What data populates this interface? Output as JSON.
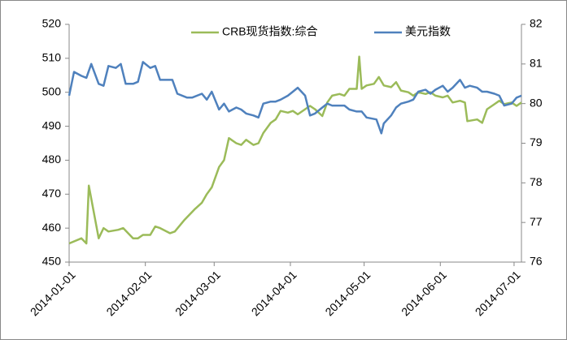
{
  "chart_data": {
    "type": "line",
    "xlim": [
      "2014-01-01",
      "2014-07-04"
    ],
    "xticks": [
      "2014-01-01",
      "2014-02-01",
      "2014-03-01",
      "2014-04-01",
      "2014-05-01",
      "2014-06-01",
      "2014-07-01"
    ],
    "ylim": [
      450,
      520
    ],
    "yticks": [
      450,
      460,
      470,
      480,
      490,
      500,
      510,
      520
    ],
    "y2lim": [
      76,
      82
    ],
    "y2ticks": [
      76,
      77,
      78,
      79,
      80,
      81,
      82
    ],
    "legend": "top",
    "series": [
      {
        "name": "CRB现货指数:综合",
        "color": "#9bbb59",
        "x": [
          "2014-01-01",
          "2014-01-06",
          "2014-01-08",
          "2014-01-09",
          "2014-01-13",
          "2014-01-15",
          "2014-01-17",
          "2014-01-21",
          "2014-01-23",
          "2014-01-27",
          "2014-01-29",
          "2014-01-31",
          "2014-02-03",
          "2014-02-05",
          "2014-02-07",
          "2014-02-11",
          "2014-02-13",
          "2014-02-17",
          "2014-02-21",
          "2014-02-24",
          "2014-02-26",
          "2014-02-28",
          "2014-03-03",
          "2014-03-05",
          "2014-03-07",
          "2014-03-10",
          "2014-03-12",
          "2014-03-14",
          "2014-03-17",
          "2014-03-19",
          "2014-03-21",
          "2014-03-24",
          "2014-03-26",
          "2014-03-28",
          "2014-03-31",
          "2014-04-02",
          "2014-04-04",
          "2014-04-07",
          "2014-04-09",
          "2014-04-11",
          "2014-04-14",
          "2014-04-16",
          "2014-04-18",
          "2014-04-21",
          "2014-04-23",
          "2014-04-25",
          "2014-04-28",
          "2014-04-29",
          "2014-04-30",
          "2014-05-02",
          "2014-05-05",
          "2014-05-07",
          "2014-05-09",
          "2014-05-12",
          "2014-05-14",
          "2014-05-16",
          "2014-05-19",
          "2014-05-21",
          "2014-05-23",
          "2014-05-26",
          "2014-05-28",
          "2014-05-30",
          "2014-06-02",
          "2014-06-04",
          "2014-06-06",
          "2014-06-09",
          "2014-06-11",
          "2014-06-12",
          "2014-06-16",
          "2014-06-18",
          "2014-06-20",
          "2014-06-23",
          "2014-06-25",
          "2014-06-27",
          "2014-06-30",
          "2014-07-02",
          "2014-07-04"
        ],
        "values": [
          455.5,
          457,
          455.5,
          472.5,
          457,
          460,
          459,
          459.5,
          460,
          457,
          457,
          458,
          458,
          460.5,
          460,
          458.5,
          459,
          462.5,
          465.5,
          467.5,
          470,
          472,
          478,
          480,
          486.5,
          485,
          484.5,
          486,
          484.5,
          485,
          488,
          491,
          492,
          494.5,
          494,
          494.5,
          493.5,
          495,
          496,
          495,
          493,
          497,
          499,
          499.5,
          499,
          501,
          501,
          510.5,
          501,
          502,
          502.5,
          504.5,
          502,
          501.5,
          503,
          500.5,
          500,
          499,
          500,
          499.5,
          500,
          499,
          498.5,
          499,
          497,
          497.5,
          497,
          491.5,
          492,
          491,
          495,
          496.5,
          497.5,
          496.5,
          497,
          496,
          497
        ]
      },
      {
        "name": "美元指数",
        "color": "#4f81bd",
        "axis": "y2",
        "x": [
          "2014-01-01",
          "2014-01-03",
          "2014-01-06",
          "2014-01-08",
          "2014-01-10",
          "2014-01-13",
          "2014-01-15",
          "2014-01-17",
          "2014-01-20",
          "2014-01-22",
          "2014-01-24",
          "2014-01-27",
          "2014-01-29",
          "2014-01-31",
          "2014-02-03",
          "2014-02-05",
          "2014-02-07",
          "2014-02-10",
          "2014-02-12",
          "2014-02-14",
          "2014-02-18",
          "2014-02-20",
          "2014-02-24",
          "2014-02-26",
          "2014-02-28",
          "2014-03-03",
          "2014-03-05",
          "2014-03-07",
          "2014-03-10",
          "2014-03-12",
          "2014-03-14",
          "2014-03-17",
          "2014-03-19",
          "2014-03-21",
          "2014-03-24",
          "2014-03-26",
          "2014-03-28",
          "2014-03-31",
          "2014-04-02",
          "2014-04-04",
          "2014-04-07",
          "2014-04-09",
          "2014-04-11",
          "2014-04-14",
          "2014-04-16",
          "2014-04-18",
          "2014-04-21",
          "2014-04-23",
          "2014-04-25",
          "2014-04-28",
          "2014-04-30",
          "2014-05-02",
          "2014-05-06",
          "2014-05-08",
          "2014-05-09",
          "2014-05-12",
          "2014-05-14",
          "2014-05-16",
          "2014-05-19",
          "2014-05-21",
          "2014-05-23",
          "2014-05-26",
          "2014-05-28",
          "2014-05-30",
          "2014-06-02",
          "2014-06-04",
          "2014-06-06",
          "2014-06-09",
          "2014-06-11",
          "2014-06-13",
          "2014-06-16",
          "2014-06-18",
          "2014-06-20",
          "2014-06-23",
          "2014-06-25",
          "2014-06-27",
          "2014-06-30",
          "2014-07-02",
          "2014-07-04"
        ],
        "values": [
          80.2,
          80.8,
          80.7,
          80.65,
          81,
          80.5,
          80.45,
          80.95,
          80.9,
          81,
          80.5,
          80.5,
          80.55,
          81.05,
          80.9,
          80.95,
          80.6,
          80.6,
          80.6,
          80.25,
          80.15,
          80.15,
          80.25,
          80.1,
          80.3,
          79.85,
          80,
          79.8,
          79.9,
          79.85,
          79.75,
          79.7,
          79.65,
          80,
          80.05,
          80.05,
          80.1,
          80.2,
          80.3,
          80.4,
          80.2,
          79.7,
          79.75,
          79.9,
          80,
          79.95,
          79.95,
          79.95,
          79.85,
          79.8,
          79.8,
          79.65,
          79.6,
          79.25,
          79.5,
          79.7,
          79.9,
          80,
          80.05,
          80.1,
          80.3,
          80.35,
          80.25,
          80.35,
          80.45,
          80.3,
          80.4,
          80.6,
          80.4,
          80.45,
          80.4,
          80.3,
          80.3,
          80.25,
          80.2,
          79.95,
          80,
          80.15,
          80.2
        ]
      }
    ]
  }
}
